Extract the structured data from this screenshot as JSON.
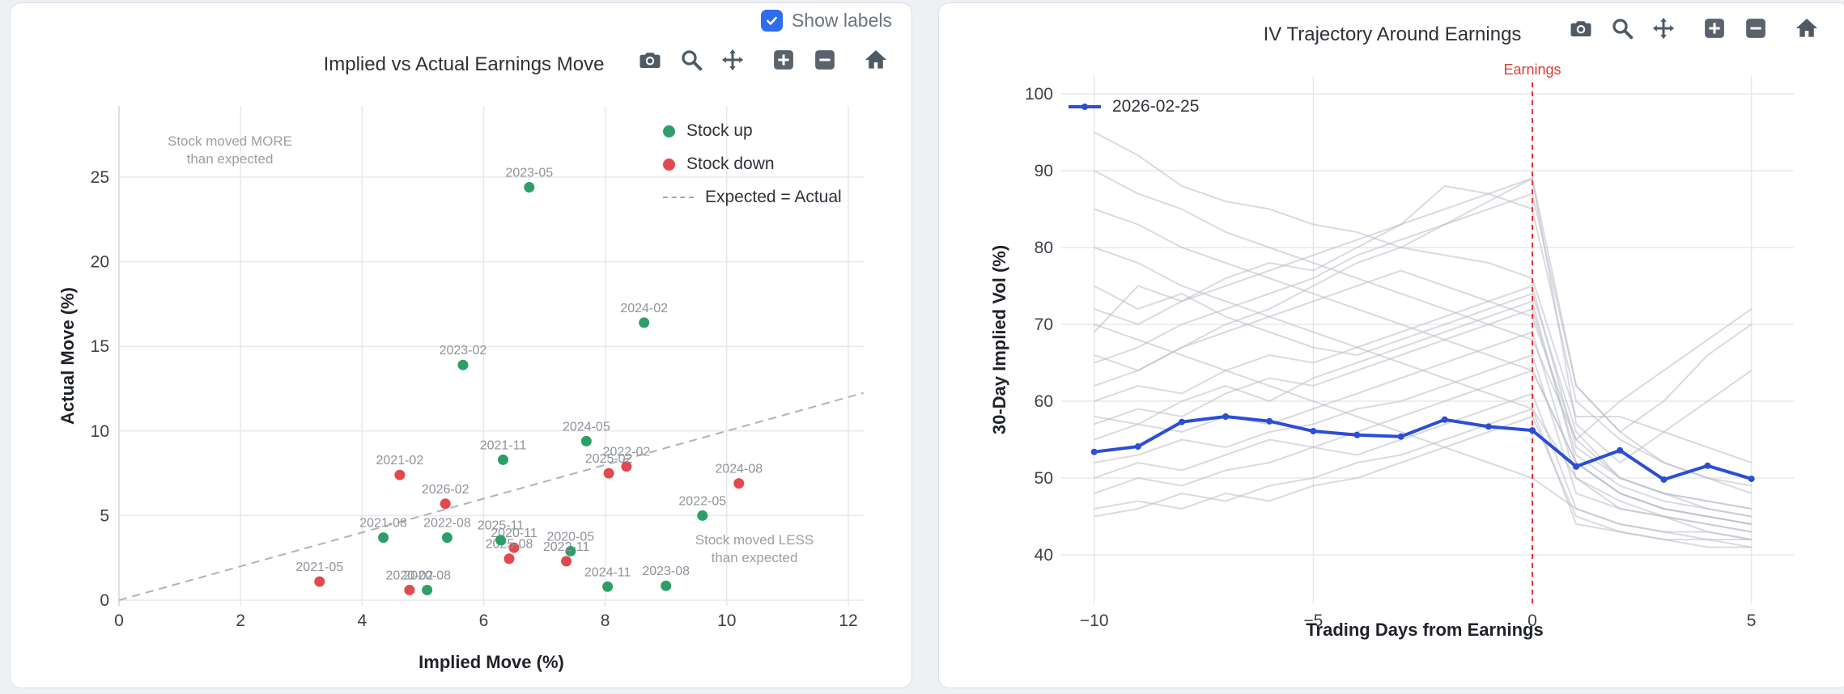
{
  "colors": {
    "stock_up_green": "#2e9e68",
    "stock_down_red": "#e04a4e",
    "current_line_blue": "#2b4ed4",
    "history_line_gray": "#b9bec9",
    "earnings_line_red": "#e53935",
    "checkbox_blue": "#2e6cf0",
    "reference_dash_gray": "#b3b3b3"
  },
  "left_panel": {
    "show_labels": {
      "label": "Show labels",
      "checked": true
    },
    "toolbar": [
      "camera",
      "zoom",
      "pan",
      "zoom-in",
      "zoom-out",
      "home"
    ],
    "annotations": {
      "more": {
        "line1": "Stock moved MORE",
        "line2": "than expected"
      },
      "less": {
        "line1": "Stock moved LESS",
        "line2": "than expected"
      }
    }
  },
  "right_panel": {
    "toolbar": [
      "camera",
      "zoom",
      "pan",
      "zoom-in",
      "zoom-out",
      "home"
    ],
    "event_label": "Earnings",
    "legend_label": "2026-02-25"
  },
  "chart_data": [
    {
      "type": "scatter",
      "title": "Implied vs Actual Earnings Move",
      "xlabel": "Implied Move (%)",
      "ylabel": "Actual Move (%)",
      "xlim": [
        0,
        12.3
      ],
      "ylim": [
        -0.4,
        29.2
      ],
      "xticks": [
        0,
        2,
        4,
        6,
        8,
        10,
        12
      ],
      "yticks": [
        0,
        5,
        10,
        15,
        20,
        25
      ],
      "xticklabels": [
        "0",
        "2",
        "4",
        "6",
        "8",
        "10",
        "12"
      ],
      "yticklabels": [
        "0",
        "5",
        "10",
        "15",
        "20",
        "25"
      ],
      "grid": true,
      "legend": [
        {
          "label": "Stock up",
          "marker": "circle"
        },
        {
          "label": "Stock down",
          "marker": "circle"
        },
        {
          "label": "Expected = Actual",
          "marker": "dash"
        }
      ],
      "reference_line": {
        "name": "Expected = Actual",
        "from": [
          0,
          0
        ],
        "to": [
          12.25,
          12.25
        ]
      },
      "points": [
        {
          "label": "2020-02",
          "x": 4.78,
          "y": 0.6,
          "dir": "down"
        },
        {
          "label": "2020-05",
          "x": 7.43,
          "y": 2.9,
          "dir": "up"
        },
        {
          "label": "2020-08",
          "x": 5.07,
          "y": 0.6,
          "dir": "up"
        },
        {
          "label": "2020-11",
          "x": 6.5,
          "y": 3.1,
          "dir": "down"
        },
        {
          "label": "2021-02",
          "x": 4.62,
          "y": 7.4,
          "dir": "down"
        },
        {
          "label": "2021-05",
          "x": 3.3,
          "y": 1.1,
          "dir": "down"
        },
        {
          "label": "2021-08",
          "x": 4.35,
          "y": 3.7,
          "dir": "up"
        },
        {
          "label": "2021-11",
          "x": 6.32,
          "y": 8.3,
          "dir": "up"
        },
        {
          "label": "2022-02",
          "x": 8.35,
          "y": 7.9,
          "dir": "down"
        },
        {
          "label": "2022-05",
          "x": 9.6,
          "y": 5.0,
          "dir": "up"
        },
        {
          "label": "2022-08",
          "x": 5.4,
          "y": 3.7,
          "dir": "up"
        },
        {
          "label": "2022-11",
          "x": 7.36,
          "y": 2.3,
          "dir": "down"
        },
        {
          "label": "2023-02",
          "x": 5.66,
          "y": 13.9,
          "dir": "up"
        },
        {
          "label": "2023-05",
          "x": 6.75,
          "y": 24.4,
          "dir": "up"
        },
        {
          "label": "2023-08",
          "x": 9.0,
          "y": 0.85,
          "dir": "up"
        },
        {
          "label": "2024-02",
          "x": 8.64,
          "y": 16.4,
          "dir": "up"
        },
        {
          "label": "2024-05",
          "x": 7.69,
          "y": 9.4,
          "dir": "up"
        },
        {
          "label": "2024-08",
          "x": 10.2,
          "y": 6.9,
          "dir": "down"
        },
        {
          "label": "2024-11",
          "x": 8.04,
          "y": 0.8,
          "dir": "up"
        },
        {
          "label": "2025-02",
          "x": 8.06,
          "y": 7.5,
          "dir": "down"
        },
        {
          "label": "2025-08",
          "x": 6.42,
          "y": 2.45,
          "dir": "down"
        },
        {
          "label": "2025-11",
          "x": 6.28,
          "y": 3.55,
          "dir": "up"
        },
        {
          "label": "2026-02",
          "x": 5.37,
          "y": 5.7,
          "dir": "down"
        }
      ]
    },
    {
      "type": "line",
      "title": "IV Trajectory Around Earnings",
      "xlabel": "Trading Days from Earnings",
      "ylabel": "30-Day Implied Vol (%)",
      "xlim": [
        -10.7,
        6.0
      ],
      "ylim": [
        33.5,
        102.5
      ],
      "xticks": [
        -10,
        -5,
        0,
        5
      ],
      "yticks": [
        40,
        50,
        60,
        70,
        80,
        90,
        100
      ],
      "xticklabels": [
        "−10",
        "−5",
        "0",
        "5"
      ],
      "yticklabels": [
        "40",
        "50",
        "60",
        "70",
        "80",
        "90",
        "100"
      ],
      "grid": true,
      "x": [
        -10,
        -9,
        -8,
        -7,
        -6,
        -5,
        -4,
        -3,
        -2,
        -1,
        0,
        1,
        2,
        3,
        4,
        5
      ],
      "series": [
        {
          "name": "2026-02-25",
          "values": [
            53.4,
            54.1,
            57.3,
            58.0,
            57.4,
            56.1,
            55.6,
            55.4,
            57.6,
            56.7,
            56.2,
            51.5,
            53.6,
            49.8,
            51.6,
            49.9
          ]
        }
      ],
      "history_series": [
        [
          95,
          92,
          88,
          86,
          85,
          83,
          82,
          80,
          79,
          78,
          76,
          58,
          58,
          56,
          54,
          52
        ],
        [
          69,
          75,
          73,
          76,
          78,
          77,
          80,
          83,
          88,
          87,
          85,
          60,
          55,
          52,
          50,
          48
        ],
        [
          75,
          72,
          74,
          71,
          69,
          67,
          66,
          68,
          70,
          72,
          74,
          56,
          50,
          48,
          46,
          45
        ],
        [
          62,
          64,
          67,
          70,
          72,
          75,
          78,
          80,
          83,
          86,
          89,
          57,
          52,
          56,
          60,
          64
        ],
        [
          58,
          57,
          60,
          62,
          60,
          63,
          65,
          67,
          69,
          71,
          73,
          52,
          48,
          46,
          45,
          44
        ],
        [
          55,
          57,
          56,
          58,
          57,
          59,
          61,
          63,
          65,
          67,
          69,
          50,
          47,
          45,
          44,
          43
        ],
        [
          52,
          53,
          55,
          54,
          56,
          57,
          59,
          60,
          62,
          64,
          66,
          48,
          46,
          45,
          43,
          42
        ],
        [
          48,
          50,
          49,
          51,
          52,
          54,
          53,
          55,
          57,
          59,
          61,
          46,
          44,
          43,
          42,
          42
        ],
        [
          45,
          46,
          48,
          47,
          49,
          50,
          52,
          53,
          55,
          57,
          59,
          44,
          43,
          42,
          42,
          41
        ],
        [
          70,
          68,
          66,
          64,
          62,
          60,
          58,
          56,
          54,
          52,
          50,
          46,
          44,
          43,
          43,
          42
        ],
        [
          80,
          78,
          75,
          73,
          71,
          69,
          67,
          65,
          63,
          61,
          59,
          50,
          46,
          45,
          44,
          43
        ],
        [
          65,
          67,
          70,
          72,
          74,
          76,
          79,
          81,
          83,
          85,
          87,
          62,
          56,
          60,
          66,
          70
        ],
        [
          60,
          62,
          61,
          64,
          66,
          65,
          67,
          69,
          71,
          73,
          75,
          54,
          50,
          48,
          47,
          46
        ],
        [
          50,
          52,
          51,
          53,
          55,
          54,
          56,
          58,
          60,
          62,
          64,
          52,
          48,
          46,
          45,
          44
        ],
        [
          72,
          70,
          73,
          75,
          77,
          79,
          81,
          83,
          85,
          87,
          89,
          62,
          56,
          52,
          50,
          49
        ],
        [
          46,
          47,
          46,
          48,
          47,
          49,
          50,
          52,
          54,
          56,
          58,
          45,
          43,
          42,
          41,
          41
        ],
        [
          85,
          83,
          80,
          78,
          76,
          74,
          72,
          70,
          68,
          66,
          64,
          52,
          48,
          46,
          45,
          44
        ],
        [
          57,
          59,
          58,
          61,
          63,
          62,
          64,
          66,
          68,
          70,
          72,
          53,
          49,
          47,
          46,
          45
        ],
        [
          66,
          64,
          67,
          69,
          71,
          73,
          75,
          77,
          75,
          73,
          71,
          55,
          60,
          64,
          68,
          72
        ],
        [
          90,
          87,
          85,
          82,
          80,
          78,
          76,
          74,
          72,
          70,
          68,
          55,
          50,
          48,
          47,
          46
        ]
      ],
      "event_line": {
        "x": 0,
        "label": "Earnings",
        "style": "dashed"
      },
      "legend_position": "top-left"
    }
  ]
}
